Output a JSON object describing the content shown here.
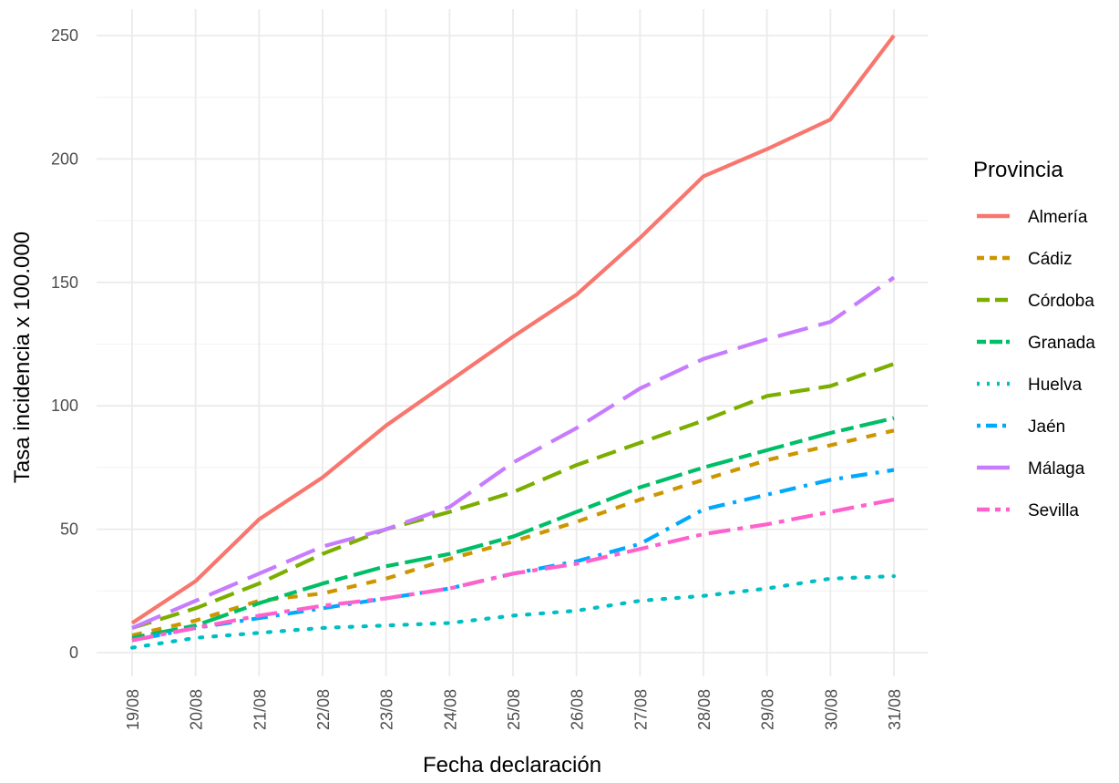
{
  "chart_data": {
    "type": "line",
    "xlabel": "Fecha declaración",
    "ylabel": "Tasa incidencia x 100.000",
    "categories": [
      "19/08",
      "20/08",
      "21/08",
      "22/08",
      "23/08",
      "24/08",
      "25/08",
      "26/08",
      "27/08",
      "28/08",
      "29/08",
      "30/08",
      "31/08"
    ],
    "ylim": [
      0,
      260
    ],
    "yticks": [
      0,
      50,
      100,
      150,
      200,
      250
    ],
    "grid": true,
    "legend": {
      "title": "Provincia",
      "position": "right"
    },
    "series": [
      {
        "name": "Almería",
        "color": "#F8766D",
        "dash": "solid",
        "values": [
          12,
          29,
          54,
          71,
          92,
          110,
          128,
          145,
          168,
          193,
          204,
          216,
          250
        ]
      },
      {
        "name": "Cádiz",
        "color": "#CD9600",
        "dash": "dashed",
        "values": [
          7,
          13,
          21,
          24,
          30,
          38,
          45,
          53,
          62,
          70,
          78,
          84,
          90
        ]
      },
      {
        "name": "Córdoba",
        "color": "#7CAE00",
        "dash": "longdash",
        "values": [
          10,
          18,
          28,
          40,
          50,
          57,
          65,
          76,
          85,
          94,
          104,
          108,
          117
        ]
      },
      {
        "name": "Granada",
        "color": "#00BE67",
        "dash": "twodash",
        "values": [
          6,
          11,
          20,
          28,
          35,
          40,
          47,
          57,
          67,
          75,
          82,
          89,
          95
        ]
      },
      {
        "name": "Huelva",
        "color": "#00BFC4",
        "dash": "dotted",
        "values": [
          2,
          6,
          8,
          10,
          11,
          12,
          15,
          17,
          21,
          23,
          26,
          30,
          31
        ]
      },
      {
        "name": "Jaén",
        "color": "#00A9FF",
        "dash": "dotdash",
        "values": [
          5,
          10,
          14,
          18,
          22,
          26,
          32,
          37,
          44,
          58,
          64,
          70,
          74
        ]
      },
      {
        "name": "Málaga",
        "color": "#C77CFF",
        "dash": "longdash2",
        "values": [
          10,
          21,
          32,
          43,
          50,
          59,
          77,
          91,
          107,
          119,
          127,
          134,
          152
        ]
      },
      {
        "name": "Sevilla",
        "color": "#FF61CC",
        "dash": "twodash2",
        "values": [
          5,
          10,
          15,
          19,
          22,
          26,
          32,
          36,
          42,
          48,
          52,
          57,
          62
        ]
      }
    ]
  }
}
